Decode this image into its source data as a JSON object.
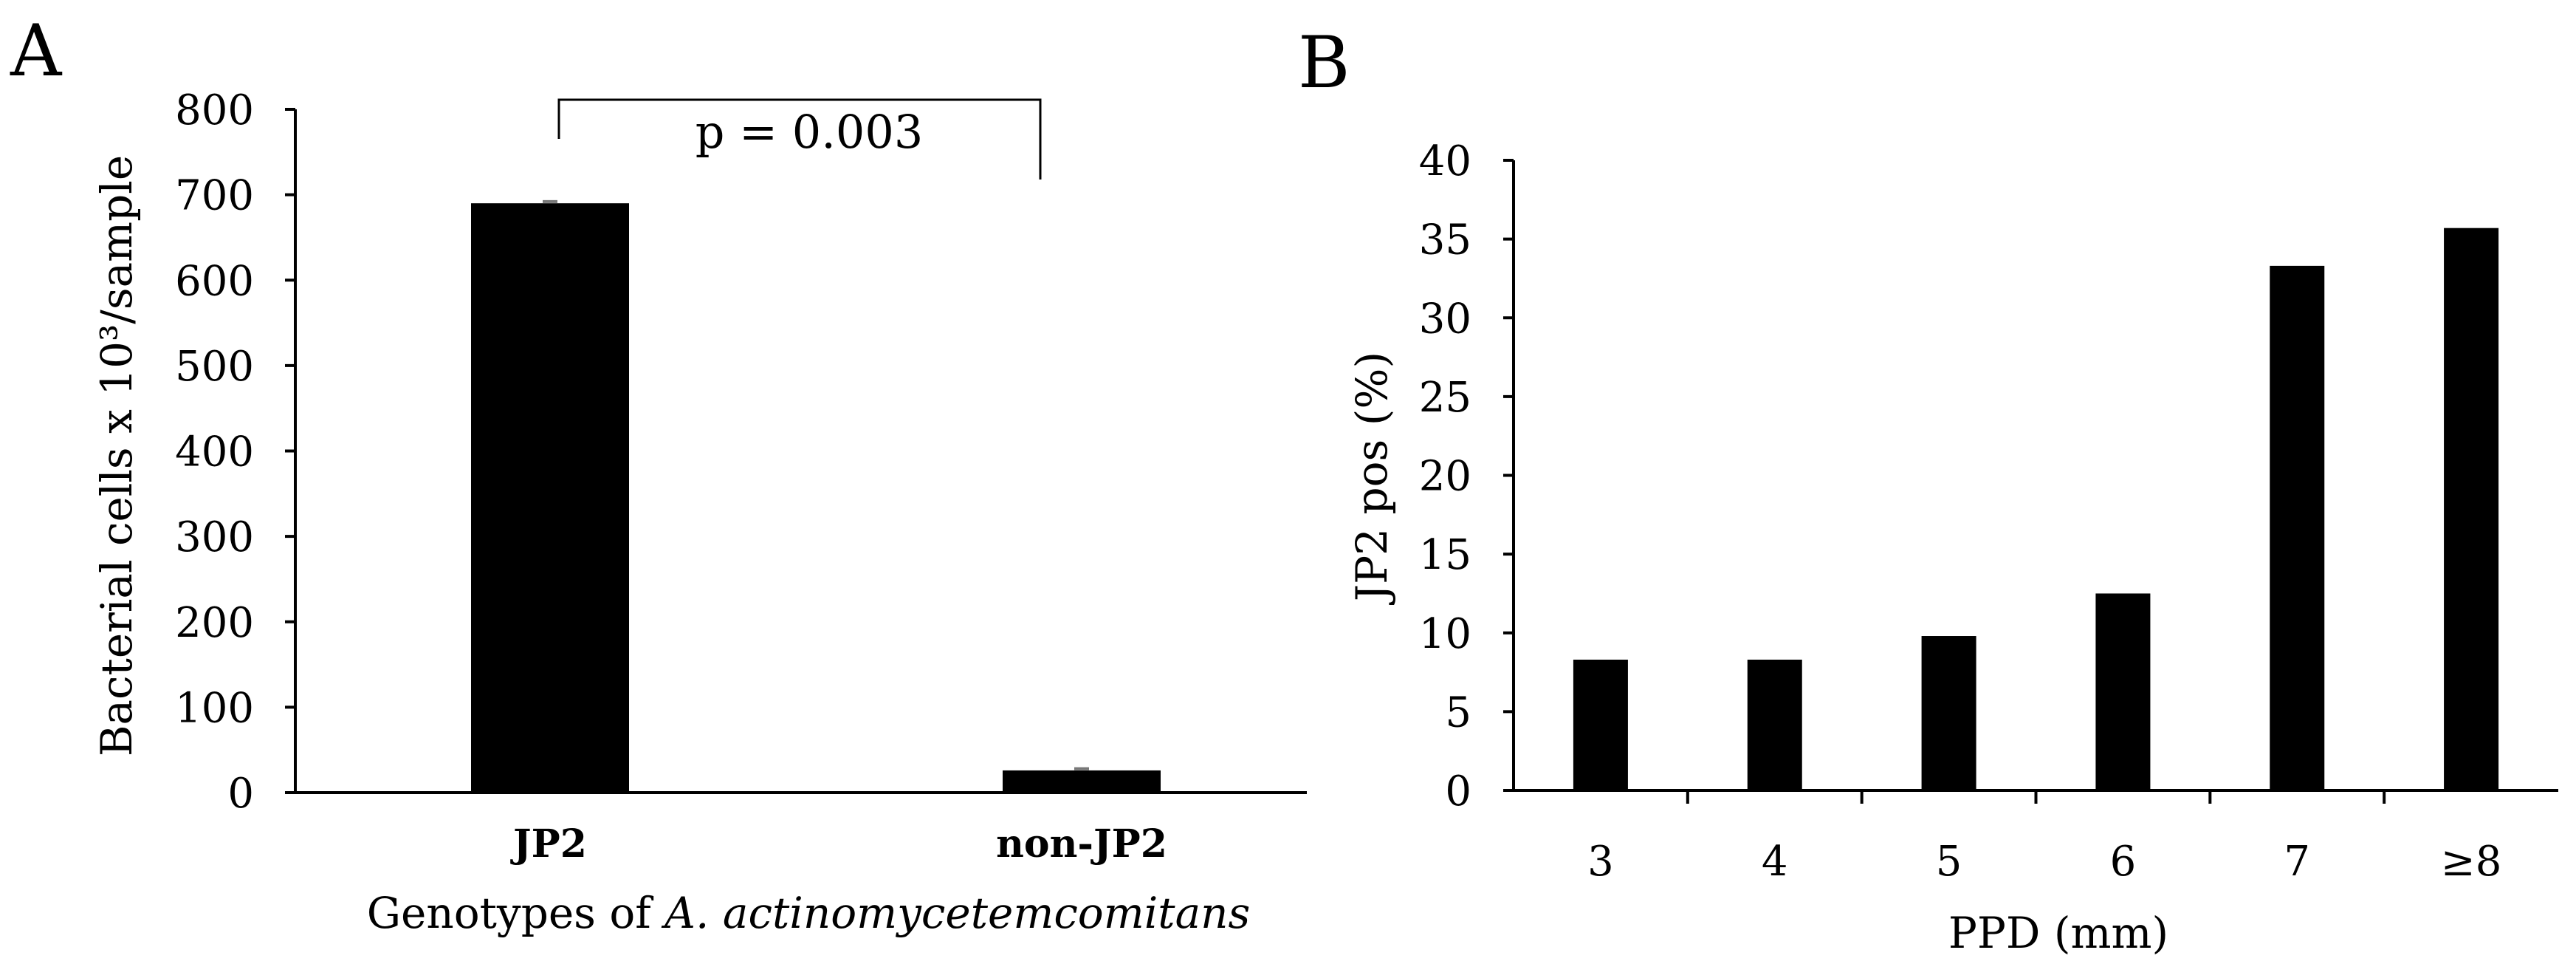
{
  "panels": {
    "a": {
      "label": "A"
    },
    "b": {
      "label": "B"
    }
  },
  "chart_data": [
    {
      "type": "bar",
      "panel": "A",
      "categories": [
        "JP2",
        "non-JP2"
      ],
      "values": [
        690,
        26
      ],
      "error": [
        2,
        2
      ],
      "ylabel": "Bacterial cells x 10³/sample",
      "xlabel_prefix": "Genotypes of ",
      "xlabel_italic": "A. actinomycetemcomitans",
      "ylim": [
        0,
        800
      ],
      "yticks": [
        0,
        100,
        200,
        300,
        400,
        500,
        600,
        700,
        800
      ],
      "annotation": "p = 0.003",
      "grid": false,
      "color": "#000000"
    },
    {
      "type": "bar",
      "panel": "B",
      "categories": [
        "3",
        "4",
        "5",
        "6",
        "7",
        "≥8"
      ],
      "values": [
        8.3,
        8.3,
        9.8,
        12.5,
        33.3,
        35.7
      ],
      "ylabel": "JP2 pos (%)",
      "xlabel": "PPD (mm)",
      "ylim": [
        0,
        40
      ],
      "yticks": [
        0,
        5,
        10,
        15,
        20,
        25,
        30,
        35,
        40
      ],
      "grid": false,
      "color": "#000000"
    }
  ]
}
